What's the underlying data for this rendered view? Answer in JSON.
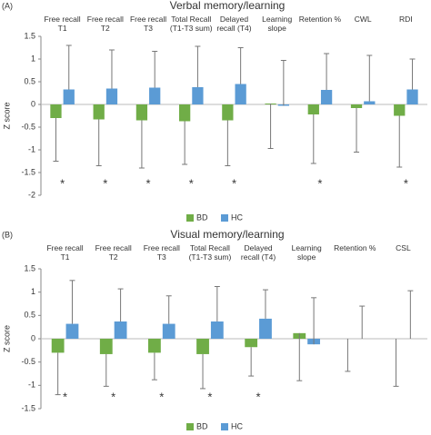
{
  "chart_data": [
    {
      "type": "bar",
      "panel_label": "(A)",
      "title": "Verbal memory/learning",
      "y_label": "Z score",
      "categories": [
        "Free recall\nT1",
        "Free recall\nT2",
        "Free recall\nT3",
        "Total Recall\n(T1-T3 sum)",
        "Delayed\nrecall (T4)",
        "Learning\nslope",
        "Retention %",
        "CWL",
        "RDI"
      ],
      "series": [
        {
          "name": "BD",
          "color": "#70ad47",
          "error_direction": "down",
          "values": [
            -0.3,
            -0.33,
            -0.35,
            -0.37,
            -0.35,
            0.02,
            -0.22,
            -0.08,
            -0.25
          ],
          "errors": [
            0.95,
            1.02,
            1.05,
            0.95,
            1.0,
            0.99,
            1.08,
            0.97,
            1.13
          ]
        },
        {
          "name": "HC",
          "color": "#5b9bd5",
          "error_direction": "up",
          "values": [
            0.33,
            0.35,
            0.37,
            0.38,
            0.45,
            -0.03,
            0.32,
            0.07,
            0.33
          ],
          "errors": [
            0.97,
            0.85,
            0.8,
            0.9,
            0.8,
            1.0,
            0.8,
            1.01,
            0.67
          ]
        }
      ],
      "annotations": [
        "*",
        "*",
        "*",
        "*",
        "*",
        null,
        "*",
        null,
        "*"
      ],
      "ylim": [
        -2,
        1.5
      ],
      "yticks": [
        -2,
        -1.5,
        -1,
        -0.5,
        0,
        0.5,
        1,
        1.5
      ],
      "legend": "bottom"
    },
    {
      "type": "bar",
      "panel_label": "(B)",
      "title": "Visual memory/learning",
      "y_label": "Z score",
      "categories": [
        "Free recall\nT1",
        "Free recall\nT2",
        "Free recall\nT3",
        "Total Recall\n(T1-T3 sum)",
        "Delayed\nrecall (T4)",
        "Learning\nslope",
        "Retention %",
        "CSL"
      ],
      "series": [
        {
          "name": "BD",
          "color": "#70ad47",
          "error_direction": "down",
          "values": [
            -0.3,
            -0.33,
            -0.3,
            -0.33,
            -0.18,
            0.12,
            0,
            0
          ],
          "errors": [
            0.9,
            0.69,
            0.58,
            0.74,
            0.62,
            1.02,
            0.7,
            1.02
          ]
        },
        {
          "name": "HC",
          "color": "#5b9bd5",
          "error_direction": "up",
          "values": [
            0.32,
            0.37,
            0.32,
            0.37,
            0.43,
            -0.12,
            0,
            0
          ],
          "errors": [
            0.93,
            0.7,
            0.6,
            0.75,
            0.62,
            1.0,
            0.7,
            1.03
          ]
        }
      ],
      "annotations": [
        "*",
        "*",
        "*",
        "*",
        "*",
        null,
        null,
        null
      ],
      "ylim": [
        -1.5,
        1.5
      ],
      "yticks": [
        -1.5,
        -1,
        -0.5,
        0,
        0.5,
        1,
        1.5
      ],
      "legend": "bottom"
    }
  ]
}
